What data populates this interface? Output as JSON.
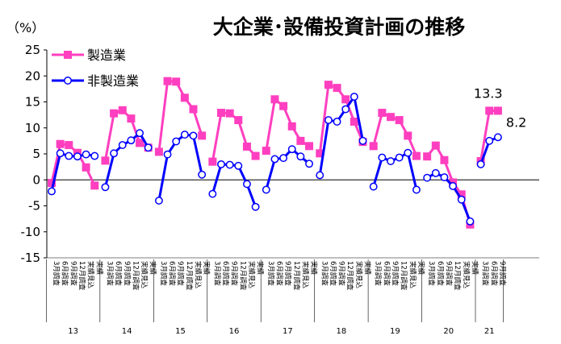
{
  "chart_data": {
    "type": "line",
    "title": "大企業･設備投資計画の推移",
    "unit_label": "（%）",
    "ylim": [
      -15,
      25
    ],
    "yticks": [
      -15,
      -10,
      -5,
      0,
      5,
      10,
      15,
      20,
      25
    ],
    "grid": false,
    "legend_position": "top-left",
    "survey_labels": [
      "3月調査",
      "6月調査",
      "9月調査",
      "12月調査",
      "実績見込",
      "実績"
    ],
    "groups": [
      {
        "label": "13",
        "points": 6
      },
      {
        "label": "14",
        "points": 6
      },
      {
        "label": "15",
        "points": 6
      },
      {
        "label": "16",
        "points": 6
      },
      {
        "label": "17",
        "points": 6
      },
      {
        "label": "18",
        "points": 6
      },
      {
        "label": "19",
        "points": 6
      },
      {
        "label": "20",
        "points": 6
      },
      {
        "label": "21",
        "points": 3
      }
    ],
    "series": [
      {
        "name": "製造業",
        "color": "#ff3fbf",
        "marker": "square",
        "values": [
          [
            -0.6,
            6.9,
            6.7,
            5.2,
            2.4,
            -1.1
          ],
          [
            3.7,
            12.8,
            13.4,
            11.8,
            7.1,
            6.2
          ],
          [
            5.4,
            19.0,
            18.9,
            15.8,
            13.6,
            8.5
          ],
          [
            3.5,
            12.9,
            12.8,
            11.5,
            6.4,
            4.6
          ],
          [
            5.6,
            15.5,
            14.2,
            10.3,
            7.5,
            6.5
          ],
          [
            5.1,
            18.3,
            17.7,
            15.5,
            11.2,
            7.3
          ],
          [
            6.5,
            12.9,
            12.1,
            11.5,
            8.5,
            4.6
          ],
          [
            4.5,
            6.6,
            3.8,
            -0.5,
            -2.8,
            -8.6
          ],
          [
            3.6,
            13.3,
            13.3
          ]
        ]
      },
      {
        "name": "非製造業",
        "color": "#0000ff",
        "marker": "circle",
        "values": [
          [
            -2.2,
            5.1,
            4.6,
            4.5,
            4.9,
            4.6
          ],
          [
            -1.4,
            5.1,
            6.7,
            7.6,
            9.0,
            6.2
          ],
          [
            -4.0,
            4.9,
            7.4,
            8.7,
            8.5,
            1.0
          ],
          [
            -2.7,
            3.0,
            2.9,
            2.7,
            -0.8,
            -5.2
          ],
          [
            -1.9,
            4.0,
            4.2,
            5.9,
            4.5,
            3.1
          ],
          [
            0.9,
            11.5,
            11.2,
            13.6,
            16.0,
            7.5
          ],
          [
            -1.3,
            4.3,
            3.6,
            4.3,
            5.2,
            -1.9
          ],
          [
            0.4,
            1.3,
            0.5,
            -1.2,
            -3.8,
            -8.0
          ],
          [
            3.0,
            7.5,
            8.2
          ]
        ]
      }
    ],
    "annotations": [
      {
        "text": "13.3",
        "series": 0,
        "group": 8,
        "index": 2
      },
      {
        "text": "8.2",
        "series": 1,
        "group": 8,
        "index": 2
      }
    ]
  }
}
